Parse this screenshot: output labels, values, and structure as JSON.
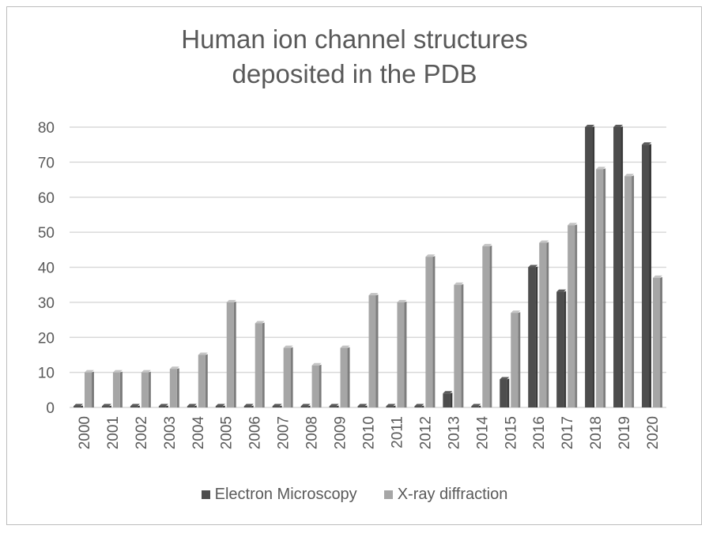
{
  "chart_data": {
    "type": "bar",
    "title_lines": [
      "Human ion channel structures",
      "deposited in the PDB"
    ],
    "categories": [
      "2000",
      "2001",
      "2002",
      "2003",
      "2004",
      "2005",
      "2006",
      "2007",
      "2008",
      "2009",
      "2010",
      "2011",
      "2012",
      "2013",
      "2014",
      "2015",
      "2016",
      "2017",
      "2018",
      "2019",
      "2020"
    ],
    "series": [
      {
        "name": "Electron Microscopy",
        "color": "#4d4d4d",
        "values": [
          0,
          0,
          0,
          0,
          0,
          0,
          0,
          0,
          0,
          0,
          0,
          0,
          0,
          4,
          0,
          8,
          40,
          33,
          80,
          80,
          75
        ]
      },
      {
        "name": "X-ray diffraction",
        "color": "#a6a6a6",
        "values": [
          10,
          10,
          10,
          11,
          15,
          30,
          24,
          17,
          12,
          17,
          32,
          30,
          43,
          35,
          46,
          27,
          47,
          52,
          68,
          66,
          37
        ]
      }
    ],
    "yticks": [
      "0",
      "10",
      "20",
      "30",
      "40",
      "50",
      "60",
      "70",
      "80"
    ],
    "ylim": [
      0,
      80
    ],
    "grid": true,
    "legend_position": "bottom",
    "bar_style": "3d"
  }
}
